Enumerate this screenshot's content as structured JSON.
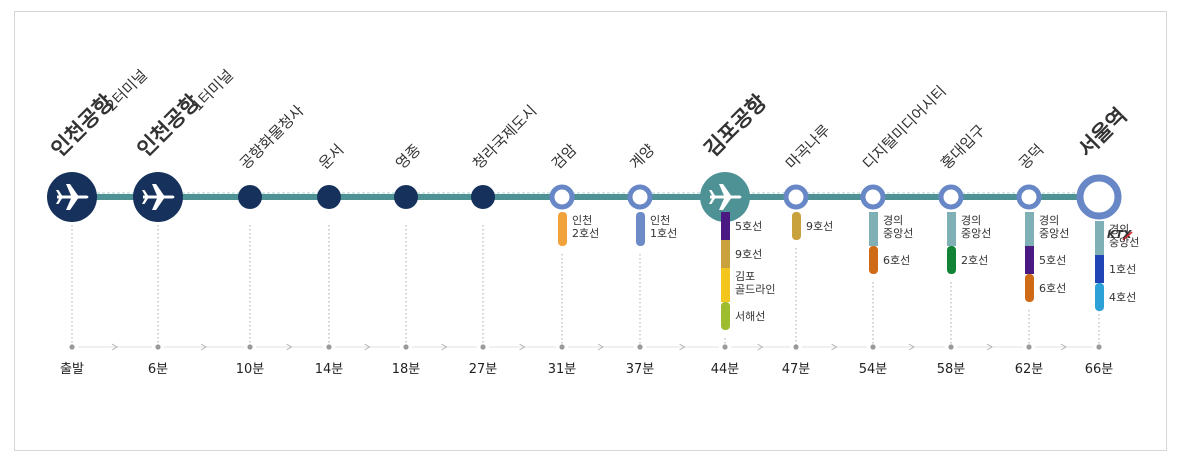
{
  "colors": {
    "navy": "#16325c",
    "teal": "#4f9295",
    "blue_ring": "#6787c6",
    "line_dots": "#aaaaaa",
    "ktx_blue": "#1f4aa8",
    "ktx_red": "#d8262d"
  },
  "stations": [
    {
      "id": "incheon-t2",
      "name": "인천공항",
      "sub": "2터미널",
      "time": "출발",
      "type": "airport-navy",
      "icon": "airplane-icon"
    },
    {
      "id": "incheon-t1",
      "name": "인천공항",
      "sub": "1터미널",
      "time": "6분",
      "type": "airport-navy",
      "icon": "airplane-icon"
    },
    {
      "id": "cargo",
      "name": "공항화물청사",
      "time": "10분",
      "type": "dot"
    },
    {
      "id": "unseo",
      "name": "운서",
      "time": "14분",
      "type": "dot"
    },
    {
      "id": "yeongjong",
      "name": "영종",
      "time": "18분",
      "type": "dot"
    },
    {
      "id": "cheongna",
      "name": "청라국제도시",
      "time": "27분",
      "type": "dot"
    },
    {
      "id": "geomam",
      "name": "검암",
      "time": "31분",
      "type": "ring",
      "transfers": [
        {
          "color": "#f2a23a",
          "label": "인천\n2호선"
        }
      ]
    },
    {
      "id": "gyeyang",
      "name": "계양",
      "time": "37분",
      "type": "ring",
      "transfers": [
        {
          "color": "#6d8bc6",
          "label": "인천\n1호선"
        }
      ]
    },
    {
      "id": "gimpo",
      "name": "김포공항",
      "time": "44분",
      "type": "airport-teal",
      "icon": "airplane-icon",
      "transfers": [
        {
          "color": "#4a1a82",
          "label": "5호선"
        },
        {
          "color": "#c9a23e",
          "label": "9호선"
        },
        {
          "color": "#f2c61c",
          "label": "김포\n골드라인"
        },
        {
          "color": "#9dbd2f",
          "label": "서해선"
        }
      ]
    },
    {
      "id": "magongnaru",
      "name": "마곡나루",
      "time": "47분",
      "type": "ring",
      "transfers": [
        {
          "color": "#c9a23e",
          "label": "9호선"
        }
      ]
    },
    {
      "id": "dmc",
      "name": "디지털미디어시티",
      "time": "54분",
      "type": "ring",
      "transfers": [
        {
          "color": "#7fb0b6",
          "label": "경의\n중앙선"
        },
        {
          "color": "#cf6a17",
          "label": "6호선"
        }
      ]
    },
    {
      "id": "hongdae",
      "name": "홍대입구",
      "time": "58분",
      "type": "ring",
      "transfers": [
        {
          "color": "#7fb0b6",
          "label": "경의\n중앙선"
        },
        {
          "color": "#128234",
          "label": "2호선"
        }
      ]
    },
    {
      "id": "gongdeok",
      "name": "공덕",
      "time": "62분",
      "type": "ring",
      "transfers": [
        {
          "color": "#7fb0b6",
          "label": "경의\n중앙선"
        },
        {
          "color": "#4a1a82",
          "label": "5호선"
        },
        {
          "color": "#cf6a17",
          "label": "6호선"
        }
      ]
    },
    {
      "id": "seoul",
      "name": "서울역",
      "time": "66분",
      "type": "terminal",
      "ktx_label": "KTX",
      "transfers": [
        {
          "color": "#7fb0b6",
          "label": "경의\n중앙선"
        },
        {
          "color": "#2043b5",
          "label": "1호선"
        },
        {
          "color": "#2ba1d8",
          "label": "4호선"
        }
      ]
    }
  ]
}
